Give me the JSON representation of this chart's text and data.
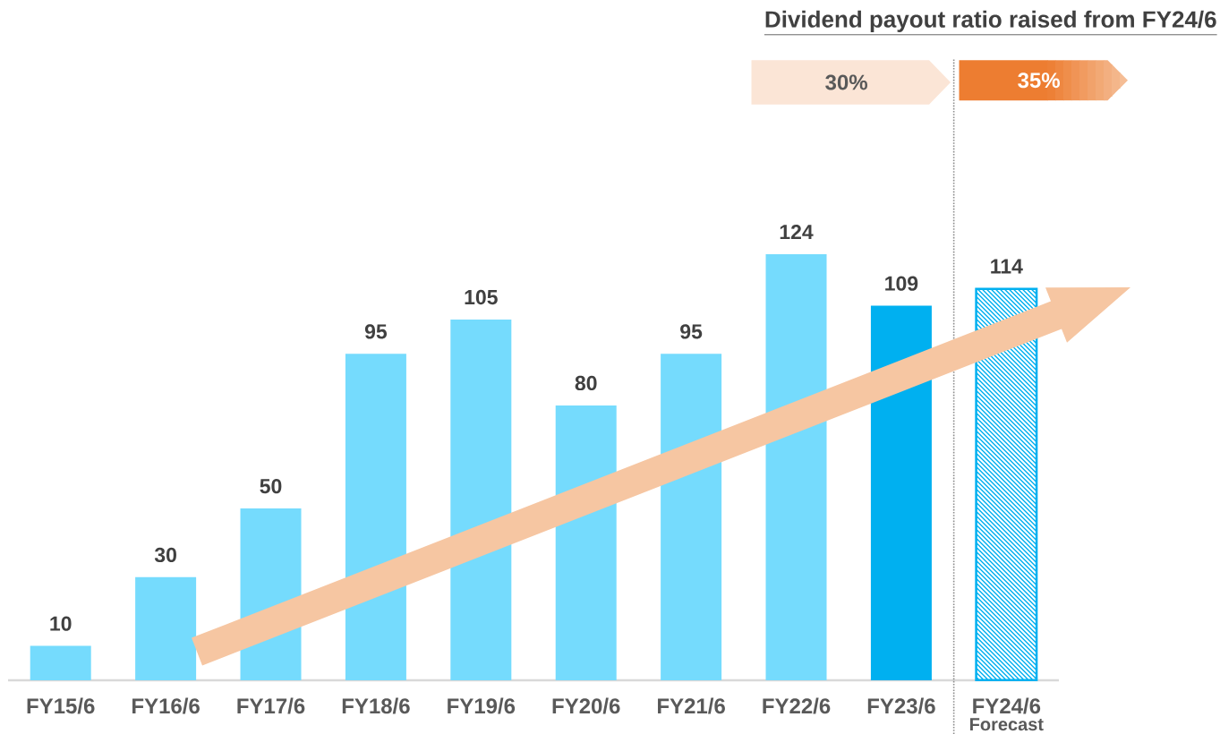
{
  "chart_data": {
    "type": "bar",
    "categories": [
      "FY15/6",
      "FY16/6",
      "FY17/6",
      "FY18/6",
      "FY19/6",
      "FY20/6",
      "FY21/6",
      "FY22/6",
      "FY23/6",
      "FY24/6"
    ],
    "values": [
      10,
      30,
      50,
      95,
      105,
      80,
      95,
      124,
      109,
      114
    ],
    "colors": [
      "#75dbfd",
      "#75dbfd",
      "#75dbfd",
      "#75dbfd",
      "#75dbfd",
      "#75dbfd",
      "#75dbfd",
      "#75dbfd",
      "#00b0f0",
      "#00b0f0"
    ],
    "data_labels": true,
    "tick_labels": "x",
    "annotations": [
      "Dividend payout ratio raised from FY24/6",
      "30%",
      "35%",
      "Forecast"
    ]
  }
}
